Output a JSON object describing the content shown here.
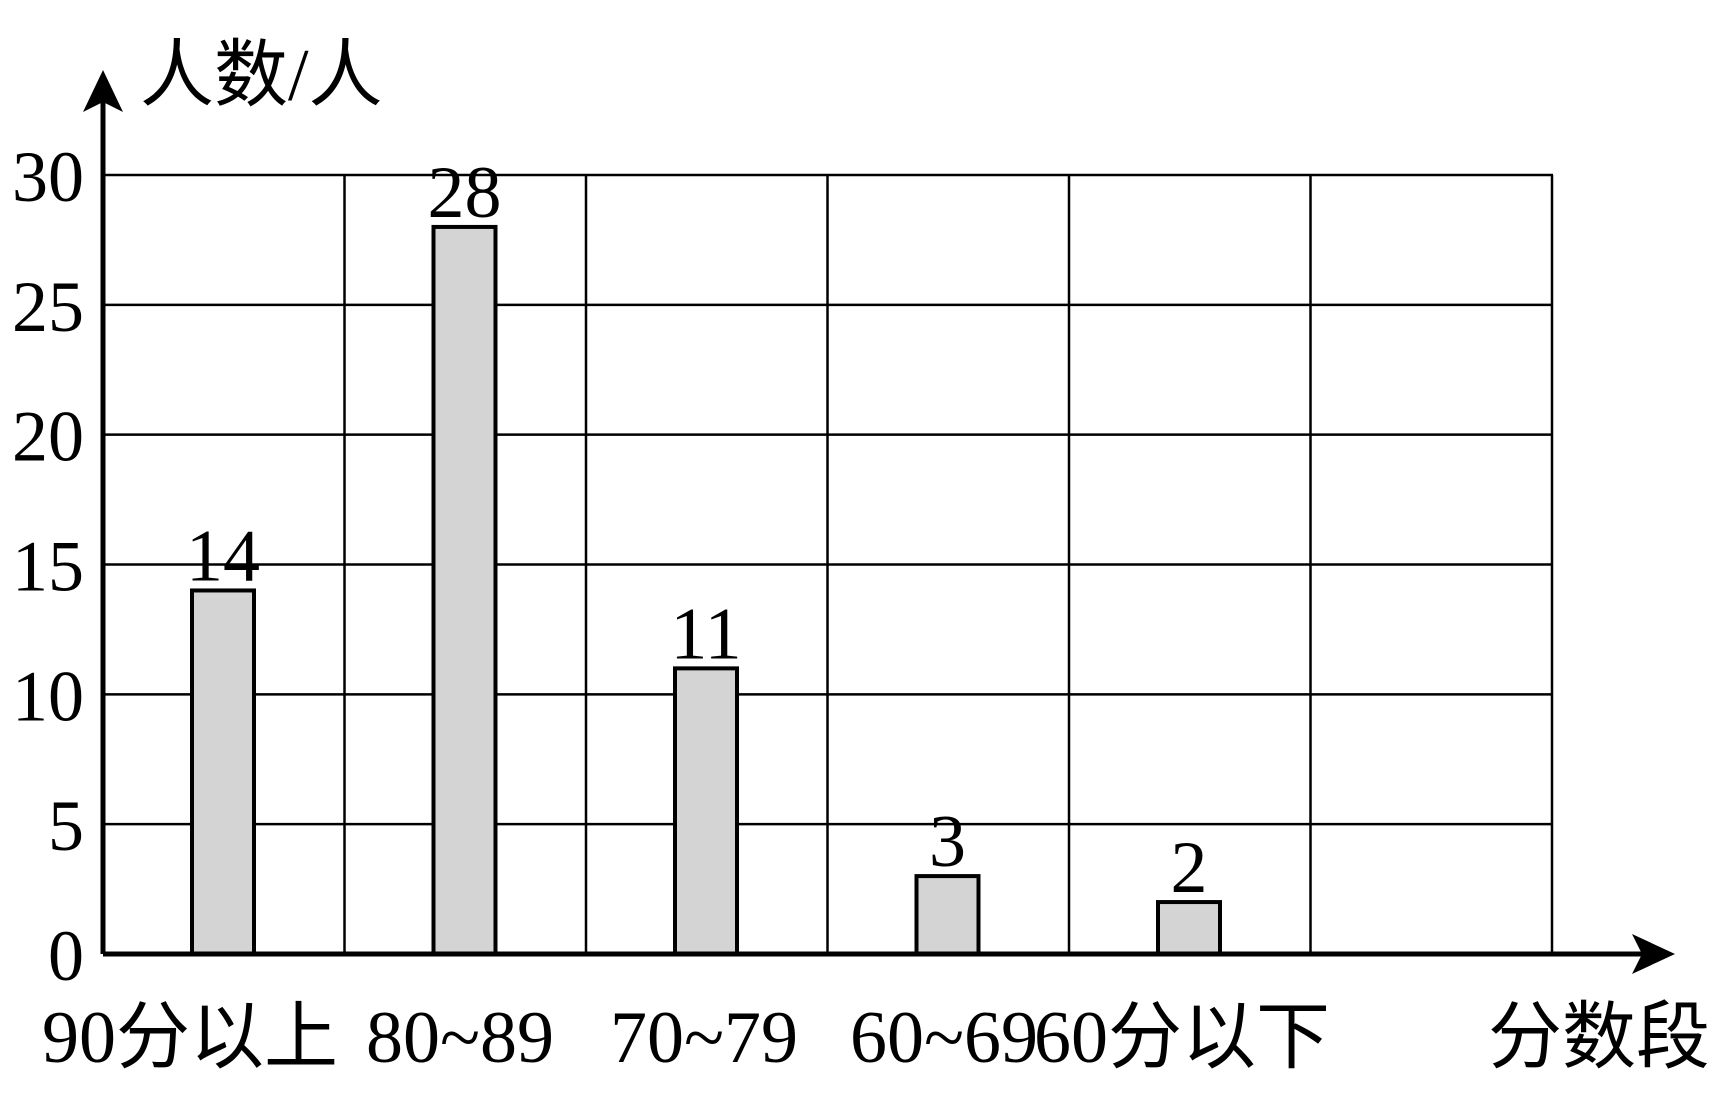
{
  "chart_data": {
    "type": "bar",
    "categories": [
      "90分以上",
      "80~89",
      "70~79",
      "60~69",
      "60分以下"
    ],
    "values": [
      14,
      28,
      11,
      3,
      2
    ],
    "data_labels": [
      "14",
      "28",
      "11",
      "3",
      "2"
    ],
    "title": "",
    "xlabel": "分数段",
    "ylabel": "人数/人",
    "ylim": [
      0,
      30
    ],
    "yticks": [
      "0",
      "5",
      "10",
      "15",
      "20",
      "25",
      "30"
    ],
    "grid": true,
    "legend": "none"
  },
  "colors": {
    "bar_fill": "#d4d4d4",
    "bar_stroke": "#000000",
    "grid": "#000000",
    "axis": "#000000",
    "background": "#ffffff"
  }
}
